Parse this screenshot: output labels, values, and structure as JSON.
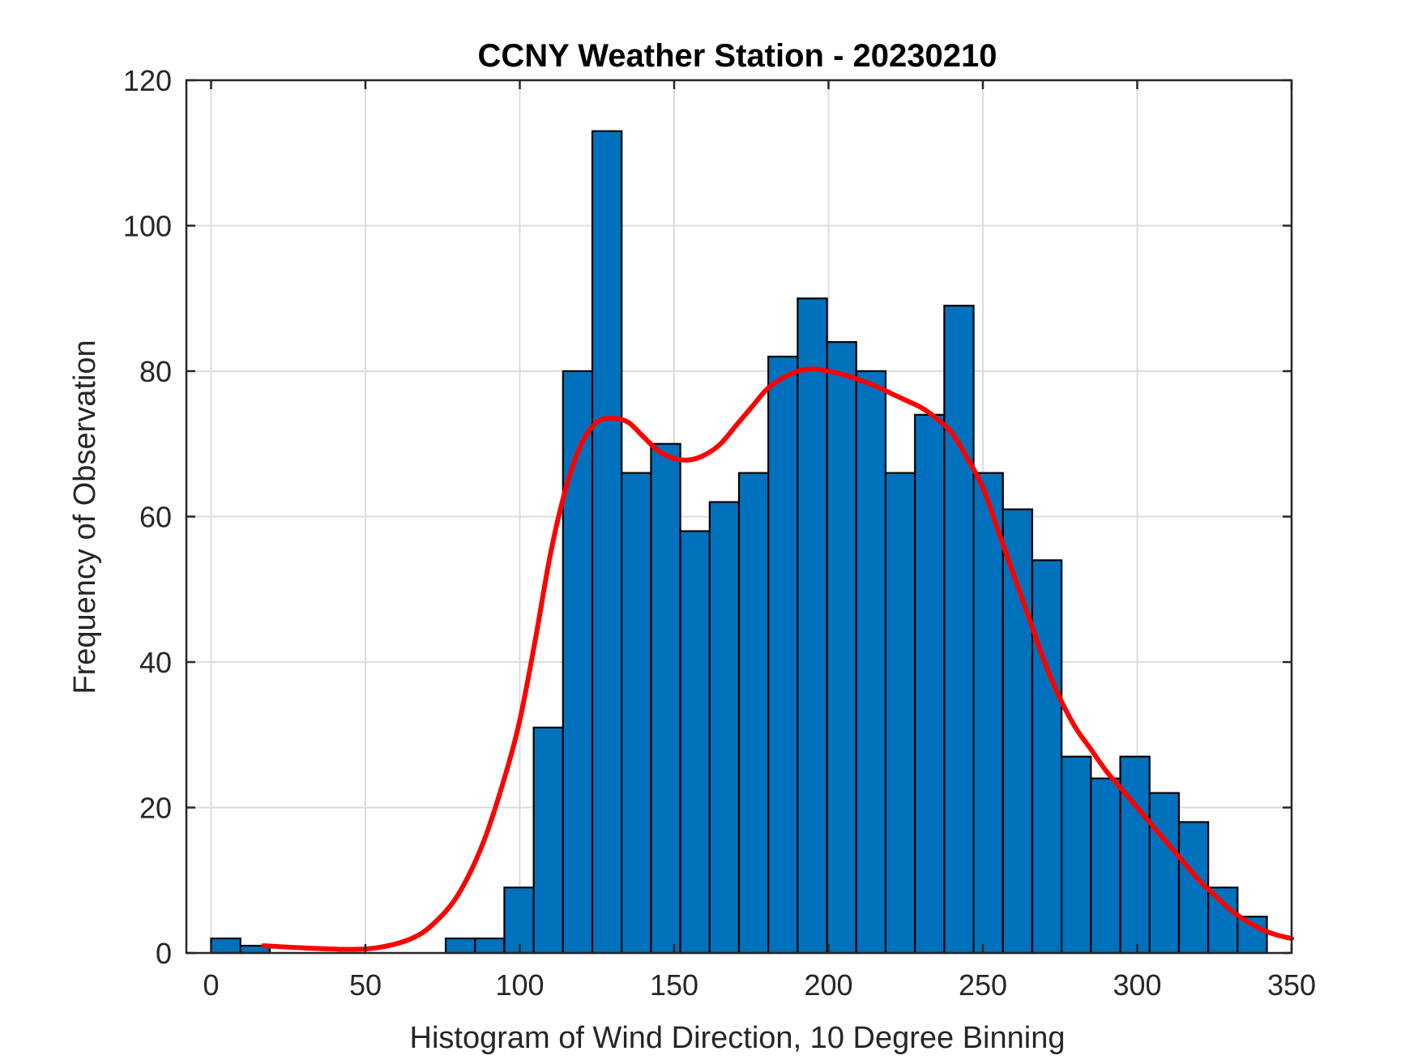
{
  "chart_data": {
    "type": "bar",
    "title": "CCNY Weather Station - 20230210",
    "xlabel": "Histogram of Wind Direction, 10 Degree Binning",
    "ylabel": "Frequency of Observation",
    "xlim": [
      -8,
      350
    ],
    "ylim": [
      0,
      120
    ],
    "xticks": [
      0,
      50,
      100,
      150,
      200,
      250,
      300,
      350
    ],
    "yticks": [
      0,
      20,
      40,
      60,
      80,
      100,
      120
    ],
    "grid": true,
    "bin_width": 9.5,
    "bin_edges": [
      0,
      9.5,
      19,
      28.5,
      38,
      47.5,
      57,
      66.5,
      76,
      85.5,
      95,
      104.5,
      114,
      123.5,
      133,
      142.5,
      152,
      161.5,
      171,
      180.5,
      190,
      199.5,
      209,
      218.5,
      228,
      237.5,
      247,
      256.5,
      266,
      275.5,
      285,
      294.5,
      304,
      313.5,
      323,
      332.5
    ],
    "values": [
      2,
      1,
      0,
      0,
      0,
      0,
      0,
      0,
      2,
      2,
      9,
      31,
      80,
      113,
      66,
      70,
      58,
      62,
      66,
      82,
      90,
      84,
      80,
      66,
      74,
      89,
      66,
      61,
      54,
      27,
      24,
      27,
      22,
      18,
      9,
      5
    ],
    "bar_color": "#0072BD",
    "edge_color": "#000000",
    "curve": {
      "color": "#FF0000",
      "x": [
        17,
        30,
        45,
        55,
        65,
        72,
        80,
        88,
        95,
        100,
        105,
        110,
        115,
        120,
        125,
        130,
        135,
        140,
        145,
        150,
        155,
        160,
        165,
        170,
        175,
        180,
        185,
        190,
        195,
        200,
        205,
        210,
        215,
        220,
        225,
        230,
        235,
        240,
        245,
        250,
        255,
        260,
        265,
        270,
        275,
        280,
        285,
        290,
        295,
        300,
        305,
        310,
        315,
        320,
        325,
        330,
        335,
        340,
        345,
        350
      ],
      "y": [
        1,
        0.7,
        0.5,
        0.8,
        2,
        4,
        8,
        15,
        24,
        32,
        43,
        55,
        64,
        70,
        73,
        73.5,
        73,
        71,
        69,
        68,
        67.8,
        68.5,
        70,
        72.5,
        75,
        77.5,
        79,
        80,
        80.3,
        80,
        79.5,
        78.8,
        78,
        77,
        76,
        75,
        73.5,
        71.5,
        68,
        64,
        58,
        52,
        46,
        40,
        35,
        31,
        28,
        25,
        22.5,
        20,
        17.5,
        15,
        12.5,
        10,
        8,
        6,
        4.5,
        3.3,
        2.5,
        2
      ]
    }
  }
}
